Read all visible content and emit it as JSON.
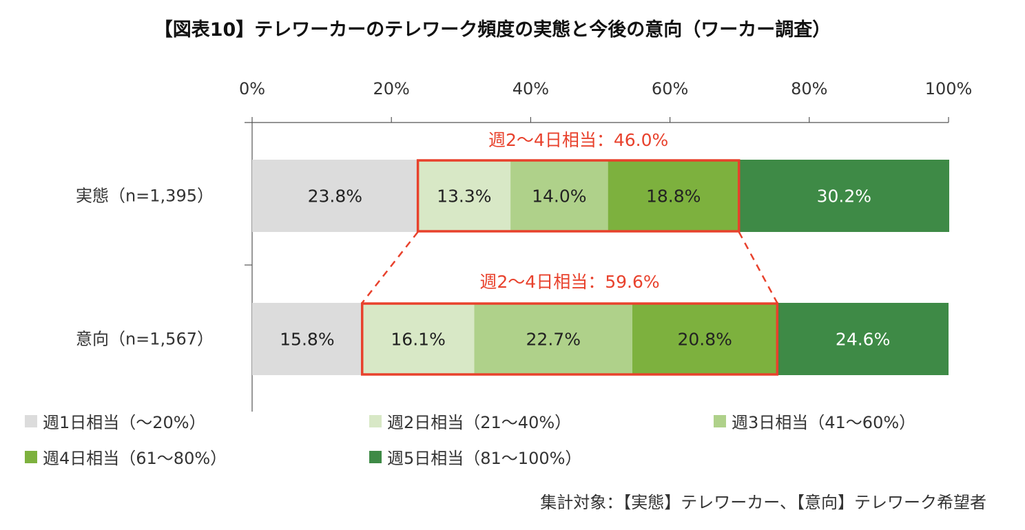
{
  "chart_data": {
    "type": "bar",
    "orientation": "horizontal",
    "stacked": true,
    "percent": true,
    "title": "【図表10】テレワーカーのテレワーク頻度の実態と今後の意向（ワーカー調査）",
    "xticks": [
      "0%",
      "20%",
      "40%",
      "60%",
      "80%",
      "100%"
    ],
    "xlim": [
      0,
      100
    ],
    "categories": [
      "実態（n=1,395）",
      "意向（n=1,567）"
    ],
    "series": [
      {
        "name": "週1日相当（～20%）",
        "color": "#dcdcdc",
        "text_color": "#222222",
        "values": [
          23.8,
          15.8
        ],
        "labels": [
          "23.8%",
          "15.8%"
        ]
      },
      {
        "name": "週2日相当（21～40%）",
        "color": "#d8e8c6",
        "text_color": "#222222",
        "values": [
          13.3,
          16.1
        ],
        "labels": [
          "13.3%",
          "16.1%"
        ]
      },
      {
        "name": "週3日相当（41～60%）",
        "color": "#afd18a",
        "text_color": "#222222",
        "values": [
          14.0,
          22.7
        ],
        "labels": [
          "14.0%",
          "22.7%"
        ]
      },
      {
        "name": "週4日相当（61～80%）",
        "color": "#7db13e",
        "text_color": "#222222",
        "values": [
          18.8,
          20.8
        ],
        "labels": [
          "18.8%",
          "20.8%"
        ]
      },
      {
        "name": "週5日相当（81～100%）",
        "color": "#3e8a46",
        "text_color": "#ffffff",
        "values": [
          30.2,
          24.6
        ],
        "labels": [
          "30.2%",
          "24.6%"
        ]
      }
    ],
    "callouts": [
      {
        "text": "週2～4日相当：46.0%",
        "value": 46.0,
        "category": "実態（n=1,395）"
      },
      {
        "text": "週2～4日相当：59.6%",
        "value": 59.6,
        "category": "意向（n=1,567）"
      }
    ],
    "highlight_color": "#e8412c",
    "legend_position": "bottom",
    "note": "集計対象：【実態】テレワーカー、【意向】テレワーク希望者"
  }
}
